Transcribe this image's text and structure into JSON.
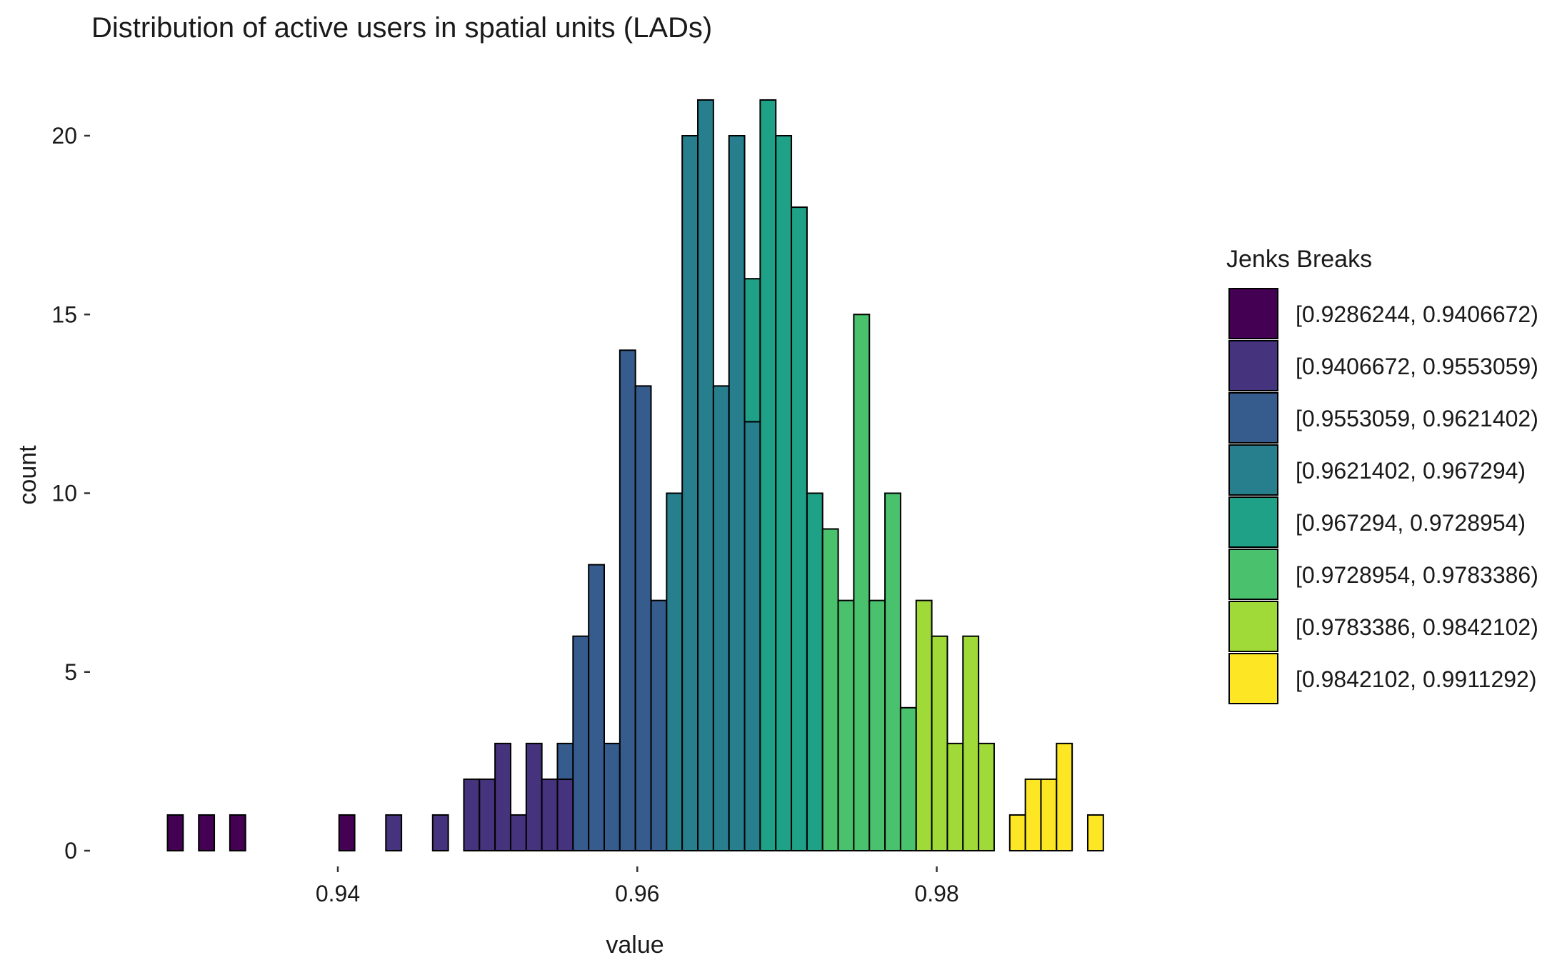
{
  "chart_data": {
    "type": "bar",
    "title": "Distribution of active users in spatial units (LADs)",
    "xlabel": "value",
    "ylabel": "count",
    "xlim": [
      0.9286244,
      0.9911292
    ],
    "ylim": [
      0,
      21
    ],
    "x_ticks": [
      {
        "value": 0.94,
        "label": "0.94"
      },
      {
        "value": 0.96,
        "label": "0.96"
      },
      {
        "value": 0.98,
        "label": "0.98"
      }
    ],
    "y_ticks": [
      {
        "value": 0,
        "label": "0"
      },
      {
        "value": 5,
        "label": "5"
      },
      {
        "value": 10,
        "label": "10"
      },
      {
        "value": 15,
        "label": "15"
      },
      {
        "value": 20,
        "label": "20"
      }
    ],
    "grid": false,
    "legend_position": "right",
    "legend_title": "Jenks Breaks",
    "classes": [
      {
        "label": "[0.9286244, 0.9406672)",
        "color": "#440154"
      },
      {
        "label": "[0.9406672, 0.9553059)",
        "color": "#46337E"
      },
      {
        "label": "[0.9553059, 0.9621402)",
        "color": "#365C8D"
      },
      {
        "label": "[0.9621402, 0.967294)",
        "color": "#277F8E"
      },
      {
        "label": "[0.967294, 0.9728954)",
        "color": "#1FA187"
      },
      {
        "label": "[0.9728954, 0.9783386)",
        "color": "#4AC16D"
      },
      {
        "label": "[0.9783386, 0.9842102)",
        "color": "#A0DA39"
      },
      {
        "label": "[0.9842102, 0.9911292)",
        "color": "#FDE725"
      }
    ],
    "bins": {
      "start": 0.9286244,
      "width": 0.0010417,
      "totals": [
        1,
        0,
        1,
        0,
        1,
        0,
        0,
        0,
        0,
        0,
        0,
        1,
        0,
        0,
        1,
        0,
        0,
        1,
        0,
        2,
        2,
        3,
        1,
        3,
        2,
        3,
        6,
        8,
        3,
        14,
        13,
        7,
        10,
        20,
        21,
        13,
        20,
        16,
        21,
        20,
        18,
        10,
        9,
        7,
        15,
        7,
        10,
        4,
        7,
        6,
        3,
        6,
        3,
        0,
        1,
        2,
        2,
        3,
        0,
        1
      ]
    },
    "stacked_bins": [
      {
        "bin": 23,
        "class": 1,
        "value": 3
      },
      {
        "bin": 24,
        "class": 1,
        "value": 2
      },
      {
        "bin": 25,
        "class": 1,
        "value": 2
      },
      {
        "bin": 25,
        "class": 2,
        "value": 1
      },
      {
        "bin": 37,
        "class": 3,
        "value": 12
      },
      {
        "bin": 37,
        "class": 4,
        "value": 4
      }
    ]
  }
}
